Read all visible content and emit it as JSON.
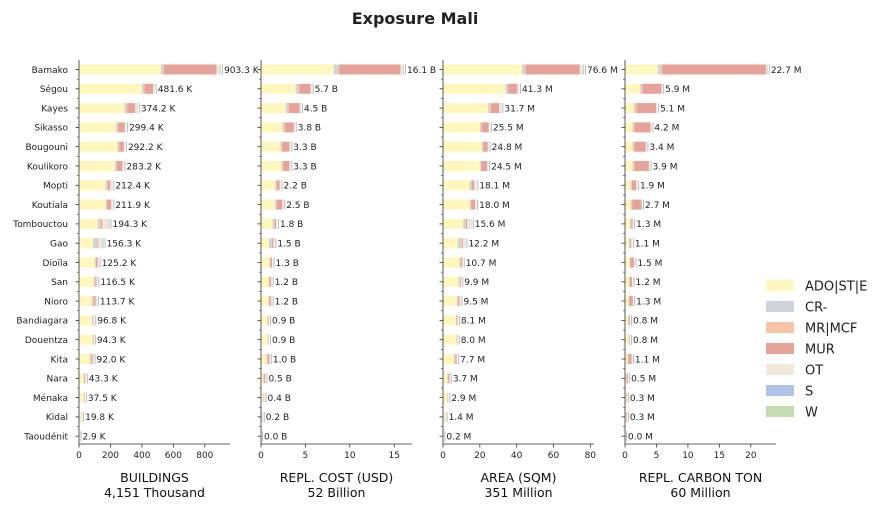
{
  "title": "Exposure Mali",
  "chart_data": {
    "type": "bar",
    "orientation": "horizontal",
    "stacked": true,
    "categories": [
      "Bamako",
      "Ségou",
      "Kayes",
      "Sikasso",
      "Bougouni",
      "Koulikoro",
      "Mopti",
      "Koutiala",
      "Tombouctou",
      "Gao",
      "Dioïla",
      "San",
      "Nioro",
      "Bandiagara",
      "Douentza",
      "Kita",
      "Nara",
      "Ménaka",
      "Kidal",
      "Taoudénit"
    ],
    "legend": {
      "position": "right",
      "items": [
        {
          "name": "ADO|ST|E",
          "color": "#fff7bc"
        },
        {
          "name": "CR-",
          "color": "#cfd3da"
        },
        {
          "name": "MR|MCF",
          "color": "#f7c4a5"
        },
        {
          "name": "MUR",
          "color": "#e6a39a"
        },
        {
          "name": "OT",
          "color": "#f2e8d9"
        },
        {
          "name": "S",
          "color": "#aec3e6"
        },
        {
          "name": "W",
          "color": "#c5dbb0"
        }
      ]
    },
    "panels": [
      {
        "xlabel": "BUILDINGS",
        "subtitle": "4,151 Thousand",
        "xlim": [
          0,
          960
        ],
        "xticks": [
          0,
          200,
          400,
          600,
          800
        ],
        "totals": [
          903.3,
          481.6,
          374.2,
          299.4,
          292.2,
          283.2,
          212.4,
          211.9,
          194.3,
          156.3,
          125.2,
          116.5,
          113.7,
          96.8,
          94.3,
          92.0,
          43.3,
          37.5,
          19.8,
          2.9
        ],
        "labels": [
          "903.3 K",
          "481.6 K",
          "374.2 K",
          "299.4 K",
          "292.2 K",
          "283.2 K",
          "212.4 K",
          "211.9 K",
          "194.3 K",
          "156.3 K",
          "125.2 K",
          "116.5 K",
          "113.7 K",
          "96.8 K",
          "94.3 K",
          "92.0 K",
          "43.3 K",
          "37.5 K",
          "19.8 K",
          "2.9 K"
        ],
        "series": [
          {
            "values": [
              520,
              400,
              290,
              235,
              245,
              230,
              170,
              170,
              120,
              90,
              100,
              95,
              80,
              82,
              85,
              70,
              28,
              28,
              14,
              2.2
            ]
          },
          {
            "values": [
              15,
              12,
              10,
              8,
              6,
              6,
              10,
              5,
              12,
              25,
              4,
              5,
              8,
              3,
              3,
              4,
              2,
              2,
              1,
              0.2
            ]
          },
          {
            "values": [
              5,
              5,
              8,
              6,
              6,
              5,
              3,
              4,
              8,
              3,
              3,
              3,
              6,
              2,
              1,
              5,
              4,
              3,
              1,
              0.2
            ]
          },
          {
            "values": [
              335,
              55,
              50,
              42,
              28,
              35,
              15,
              25,
              8,
              5,
              12,
              8,
              12,
              4,
              3,
              8,
              5,
              2,
              1,
              0.1
            ]
          },
          {
            "values": [
              20,
              7,
              12,
              6,
              5,
              5,
              12,
              6,
              40,
              25,
              4,
              4,
              6,
              4,
              2,
              3,
              3,
              1.5,
              2,
              0.1
            ]
          },
          {
            "values": [
              3,
              1,
              2,
              1,
              1,
              1,
              1,
              1,
              3,
              4,
              1,
              1,
              1,
              1,
              0.2,
              1,
              0.5,
              0.5,
              0.4,
              0.05
            ]
          },
          {
            "values": [
              5.3,
              1.6,
              2.2,
              1.4,
              1.2,
              1.2,
              1.4,
              0.9,
              3.3,
              4.3,
              1.2,
              0.5,
              0.7,
              0.8,
              0.1,
              1,
              0.8,
              0.5,
              0.4,
              0.05
            ]
          }
        ]
      },
      {
        "xlabel": "REPL. COST (USD)",
        "subtitle": "52 Billion",
        "xlim": [
          0,
          17
        ],
        "xticks": [
          0,
          5,
          10,
          15
        ],
        "totals": [
          16.1,
          5.7,
          4.5,
          3.8,
          3.3,
          3.3,
          2.2,
          2.5,
          1.8,
          1.5,
          1.3,
          1.2,
          1.2,
          0.9,
          0.9,
          1.0,
          0.5,
          0.4,
          0.2,
          0.0
        ],
        "labels": [
          "16.1 B",
          "5.7 B",
          "4.5 B",
          "3.8 B",
          "3.3 B",
          "3.3 B",
          "2.2 B",
          "2.5 B",
          "1.8 B",
          "1.5 B",
          "1.3 B",
          "1.2 B",
          "1.2 B",
          "0.9 B",
          "0.9 B",
          "1.0 B",
          "0.5 B",
          "0.4 B",
          "0.2 B",
          "0.0 B"
        ],
        "series": [
          {
            "values": [
              8.2,
              3.9,
              2.8,
              2.4,
              2.2,
              2.3,
              1.6,
              1.6,
              1.3,
              0.9,
              0.95,
              0.85,
              0.8,
              0.7,
              0.75,
              0.6,
              0.25,
              0.25,
              0.12,
              0.02
            ]
          },
          {
            "values": [
              0.5,
              0.3,
              0.2,
              0.2,
              0.1,
              0.1,
              0.15,
              0.1,
              0.15,
              0.3,
              0.05,
              0.05,
              0.1,
              0.05,
              0.05,
              0.05,
              0.03,
              0.03,
              0.02,
              0.0
            ]
          },
          {
            "values": [
              0.1,
              0.1,
              0.15,
              0.1,
              0.1,
              0.1,
              0.05,
              0.1,
              0.1,
              0.05,
              0.05,
              0.05,
              0.1,
              0.03,
              0.02,
              0.1,
              0.05,
              0.04,
              0.02,
              0.0
            ]
          },
          {
            "values": [
              6.9,
              1.3,
              1.2,
              1.0,
              0.8,
              0.7,
              0.3,
              0.6,
              0.15,
              0.15,
              0.2,
              0.2,
              0.15,
              0.08,
              0.05,
              0.2,
              0.12,
              0.05,
              0.02,
              0.0
            ]
          },
          {
            "values": [
              0.3,
              0.08,
              0.12,
              0.08,
              0.08,
              0.08,
              0.08,
              0.08,
              0.08,
              0.07,
              0.03,
              0.04,
              0.04,
              0.03,
              0.02,
              0.04,
              0.04,
              0.02,
              0.01,
              0.0
            ]
          },
          {
            "values": [
              0.05,
              0.01,
              0.02,
              0.01,
              0.01,
              0.01,
              0.01,
              0.01,
              0.01,
              0.02,
              0.01,
              0.01,
              0.01,
              0.01,
              0.01,
              0.01,
              0.01,
              0.01,
              0.01,
              0.0
            ]
          },
          {
            "values": [
              0.05,
              0.01,
              0.01,
              0.01,
              0.01,
              0.01,
              0.01,
              0.01,
              0.01,
              0.01,
              0.01,
              0.0,
              0.0,
              0.0,
              0.0,
              0.0,
              0.0,
              0.0,
              0.0,
              0.0
            ]
          }
        ]
      },
      {
        "xlabel": "AREA (SQM)",
        "subtitle": "351 Million",
        "xlim": [
          0,
          82
        ],
        "xticks": [
          0,
          20,
          40,
          60,
          80
        ],
        "totals": [
          76.6,
          41.3,
          31.7,
          25.5,
          24.8,
          24.5,
          18.1,
          18.0,
          15.6,
          12.2,
          10.7,
          9.9,
          9.5,
          8.1,
          8.0,
          7.7,
          3.7,
          2.9,
          1.4,
          0.2
        ],
        "labels": [
          "76.6 M",
          "41.3 M",
          "31.7 M",
          "25.5 M",
          "24.8 M",
          "24.5 M",
          "18.1 M",
          "18.0 M",
          "15.6 M",
          "12.2 M",
          "10.7 M",
          "9.9 M",
          "9.5 M",
          "8.1 M",
          "8.0 M",
          "7.7 M",
          "3.7 M",
          "2.9 M",
          "1.4 M",
          "0.2 M"
        ],
        "series": [
          {
            "values": [
              43,
              34,
              24.5,
              20,
              21,
              20,
              14.5,
              14.5,
              11,
              8,
              9,
              8.5,
              7.5,
              7,
              7.3,
              6,
              2.3,
              2.3,
              1,
              0.15
            ]
          },
          {
            "values": [
              1.5,
              1,
              0.8,
              0.7,
              0.5,
              0.5,
              1,
              0.4,
              1,
              2,
              0.3,
              0.4,
              0.5,
              0.2,
              0.3,
              0.3,
              0.2,
              0.1,
              0.1,
              0.01
            ]
          },
          {
            "values": [
              0.4,
              0.4,
              0.7,
              0.5,
              0.5,
              0.4,
              0.3,
              0.4,
              0.5,
              0.3,
              0.3,
              0.2,
              0.4,
              0.15,
              0.1,
              0.4,
              0.3,
              0.2,
              0.1,
              0.01
            ]
          },
          {
            "values": [
              29.4,
              4.9,
              4.5,
              3.6,
              2.3,
              3,
              1.2,
              2.1,
              0.7,
              0.5,
              0.8,
              0.6,
              0.7,
              0.5,
              0.2,
              0.7,
              0.7,
              0.2,
              0.1,
              0.01
            ]
          },
          {
            "values": [
              1.6,
              0.7,
              0.9,
              0.5,
              0.4,
              0.4,
              0.9,
              0.5,
              2.2,
              1.1,
              0.2,
              0.2,
              0.3,
              0.2,
              0.1,
              0.2,
              0.15,
              0.07,
              0.07,
              0.01
            ]
          },
          {
            "values": [
              0.3,
              0.2,
              0.1,
              0.1,
              0.05,
              0.1,
              0.1,
              0.05,
              0.1,
              0.15,
              0.05,
              0.0,
              0.05,
              0.03,
              0.0,
              0.05,
              0.03,
              0.02,
              0.02,
              0.0
            ]
          },
          {
            "values": [
              0.4,
              0.1,
              0.2,
              0.1,
              0.05,
              0.1,
              0.1,
              0.05,
              0.1,
              0.15,
              0.05,
              0.0,
              0.05,
              0.02,
              0.0,
              0.05,
              0.02,
              0.01,
              0.01,
              0.0
            ]
          }
        ]
      },
      {
        "xlabel": "REPL. CARBON TON",
        "subtitle": "60 Million",
        "xlim": [
          0,
          24
        ],
        "xticks": [
          0,
          5,
          10,
          15,
          20
        ],
        "totals": [
          22.7,
          5.9,
          5.1,
          4.2,
          3.4,
          3.9,
          1.9,
          2.7,
          1.3,
          1.1,
          1.5,
          1.2,
          1.3,
          0.8,
          0.8,
          1.1,
          0.5,
          0.3,
          0.3,
          0.0
        ],
        "labels": [
          "22.7 M",
          "5.9 M",
          "5.1 M",
          "4.2 M",
          "3.4 M",
          "3.9 M",
          "1.9 M",
          "2.7 M",
          "1.3 M",
          "1.1 M",
          "1.5 M",
          "1.2 M",
          "1.3 M",
          "0.8 M",
          "0.8 M",
          "1.1 M",
          "0.5 M",
          "0.3 M",
          "0.3 M",
          "0.0 M"
        ],
        "series": [
          {
            "values": [
              5.2,
              2.4,
              1.4,
              1.2,
              1.2,
              1.2,
              0.9,
              0.9,
              0.8,
              0.6,
              0.7,
              0.6,
              0.55,
              0.5,
              0.6,
              0.4,
              0.2,
              0.15,
              0.15,
              0.0
            ]
          },
          {
            "values": [
              0.5,
              0.2,
              0.15,
              0.1,
              0.1,
              0.1,
              0.1,
              0.1,
              0.1,
              0.2,
              0.05,
              0.05,
              0.05,
              0.03,
              0.03,
              0.05,
              0.02,
              0.02,
              0.01,
              0.0
            ]
          },
          {
            "values": [
              0.2,
              0.2,
              0.3,
              0.2,
              0.2,
              0.2,
              0.1,
              0.15,
              0.1,
              0.05,
              0.1,
              0.1,
              0.1,
              0.05,
              0.05,
              0.1,
              0.05,
              0.03,
              0.02,
              0.0
            ]
          },
          {
            "values": [
              16.5,
              3.0,
              3.1,
              2.6,
              1.8,
              2.3,
              0.7,
              1.5,
              0.2,
              0.15,
              0.6,
              0.4,
              0.55,
              0.2,
              0.1,
              0.5,
              0.2,
              0.08,
              0.1,
              0.0
            ]
          },
          {
            "values": [
              0.2,
              0.08,
              0.1,
              0.08,
              0.08,
              0.08,
              0.08,
              0.05,
              0.08,
              0.08,
              0.03,
              0.04,
              0.04,
              0.02,
              0.02,
              0.04,
              0.03,
              0.02,
              0.02,
              0.0
            ]
          },
          {
            "values": [
              0.05,
              0.01,
              0.03,
              0.01,
              0.01,
              0.01,
              0.01,
              0.0,
              0.01,
              0.01,
              0.01,
              0.01,
              0.01,
              0.0,
              0.0,
              0.01,
              0.0,
              0.0,
              0.0,
              0.0
            ]
          },
          {
            "values": [
              0.05,
              0.01,
              0.02,
              0.01,
              0.01,
              0.01,
              0.01,
              0.0,
              0.01,
              0.01,
              0.01,
              0.0,
              0.0,
              0.0,
              0.0,
              0.0,
              0.0,
              0.0,
              0.0,
              0.0
            ]
          }
        ]
      }
    ]
  }
}
